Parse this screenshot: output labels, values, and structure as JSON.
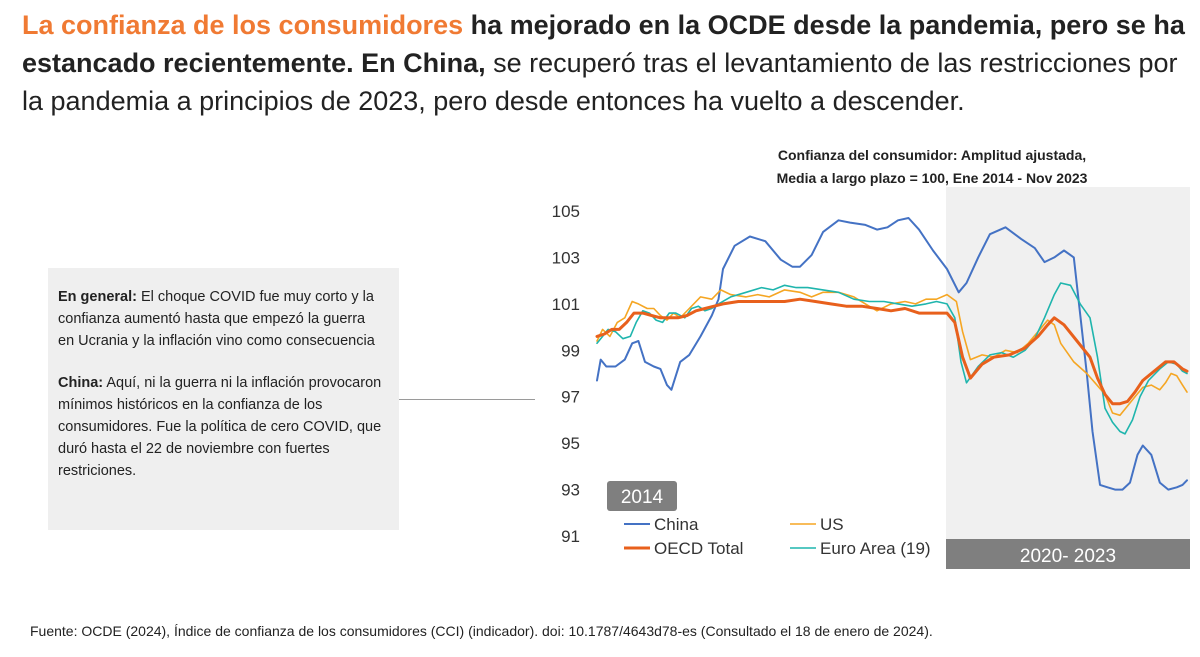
{
  "headline": {
    "part1_highlight": "La confianza de los consumidores",
    "part2_bold": " ha mejorado en la OCDE desde la pandemia, pero se ha estancado recientemente. En China,",
    "part3_regular": " se recuperó tras el levantamiento de las restricciones por la pandemia a principios de 2023, pero desde entonces ha vuelto a descender."
  },
  "note": {
    "p1_label": "En general:",
    "p1_text": " El choque COVID fue muy corto y la confianza aumentó hasta que empezó la guerra en Ucrania y la inflación vino como consecuencia",
    "p2_label": "China:",
    "p2_text": " Aquí, ni la guerra ni la inflación provocaron mínimos históricos en la confianza de los consumidores. Fue la política de cero COVID, que duró hasta el 22 de noviembre con fuertes restriciones."
  },
  "source": "Fuente: OCDE (2024), Índice de confianza de los consumidores (CCI) (indicador). doi: 10.1787/4643d78-es (Consultado el 18 de enero de 2024).",
  "colors": {
    "china": "#4472c4",
    "us": "#f5a623",
    "oecd": "#e8601c",
    "euro": "#1fb5ad",
    "shade": "#f0f0f0",
    "label_box": "#7f7f7f"
  },
  "chart_data": {
    "type": "line",
    "title_line1": "Confianza del consumidor: Amplitud ajustada,",
    "title_line2": "Media  a largo plazo = 100, Ene 2014 - Nov 2023",
    "ylim": [
      91,
      105
    ],
    "yticks": [
      91,
      93,
      95,
      97,
      99,
      101,
      103,
      105
    ],
    "x_start": "2014-01",
    "x_end": "2023-11",
    "shaded_period": {
      "start": "2020-01",
      "end": "2023-11",
      "label": "2020- 2023"
    },
    "start_label": "2014",
    "x_anchor_years": [
      2014,
      2015,
      2016,
      2017,
      2018,
      2019,
      2020,
      2021,
      2022,
      2023,
      2023.83
    ],
    "series": [
      {
        "name": "China",
        "color_key": "china",
        "width": 2,
        "points": [
          [
            2014.0,
            97.7
          ],
          [
            2014.1,
            98.6
          ],
          [
            2014.25,
            98.3
          ],
          [
            2014.5,
            98.3
          ],
          [
            2014.75,
            98.6
          ],
          [
            2014.95,
            99.3
          ],
          [
            2015.1,
            99.4
          ],
          [
            2015.25,
            98.5
          ],
          [
            2015.45,
            98.3
          ],
          [
            2015.6,
            98.2
          ],
          [
            2015.75,
            97.5
          ],
          [
            2015.85,
            97.3
          ],
          [
            2016.05,
            98.5
          ],
          [
            2016.25,
            98.8
          ],
          [
            2016.5,
            99.6
          ],
          [
            2016.75,
            100.5
          ],
          [
            2016.9,
            101.2
          ],
          [
            2017.0,
            102.5
          ],
          [
            2017.15,
            103.5
          ],
          [
            2017.35,
            103.9
          ],
          [
            2017.55,
            103.7
          ],
          [
            2017.75,
            102.9
          ],
          [
            2017.9,
            102.6
          ],
          [
            2018.0,
            102.6
          ],
          [
            2018.15,
            103.1
          ],
          [
            2018.3,
            104.1
          ],
          [
            2018.5,
            104.6
          ],
          [
            2018.65,
            104.5
          ],
          [
            2018.85,
            104.4
          ],
          [
            2019.0,
            104.2
          ],
          [
            2019.15,
            104.3
          ],
          [
            2019.3,
            104.6
          ],
          [
            2019.45,
            104.7
          ],
          [
            2019.6,
            104.2
          ],
          [
            2019.8,
            103.3
          ],
          [
            2020.0,
            102.5
          ],
          [
            2020.15,
            101.5
          ],
          [
            2020.25,
            101.9
          ],
          [
            2020.4,
            103.0
          ],
          [
            2020.55,
            104.0
          ],
          [
            2020.75,
            104.3
          ],
          [
            2020.95,
            103.8
          ],
          [
            2021.15,
            103.4
          ],
          [
            2021.3,
            102.8
          ],
          [
            2021.45,
            103.0
          ],
          [
            2021.6,
            103.3
          ],
          [
            2021.75,
            103.0
          ],
          [
            2021.95,
            98.0
          ],
          [
            2022.05,
            95.5
          ],
          [
            2022.2,
            93.2
          ],
          [
            2022.35,
            93.1
          ],
          [
            2022.5,
            93.0
          ],
          [
            2022.65,
            93.0
          ],
          [
            2022.8,
            93.3
          ],
          [
            2022.95,
            94.5
          ],
          [
            2023.05,
            94.9
          ],
          [
            2023.2,
            94.5
          ],
          [
            2023.35,
            93.3
          ],
          [
            2023.5,
            93.0
          ],
          [
            2023.65,
            93.1
          ],
          [
            2023.75,
            93.2
          ],
          [
            2023.83,
            93.4
          ]
        ]
      },
      {
        "name": "US",
        "color_key": "us",
        "width": 1.6,
        "points": [
          [
            2014.0,
            99.4
          ],
          [
            2014.15,
            99.9
          ],
          [
            2014.35,
            99.6
          ],
          [
            2014.55,
            100.2
          ],
          [
            2014.75,
            100.4
          ],
          [
            2014.95,
            101.1
          ],
          [
            2015.1,
            101.0
          ],
          [
            2015.3,
            100.8
          ],
          [
            2015.45,
            100.8
          ],
          [
            2015.6,
            100.5
          ],
          [
            2015.75,
            100.3
          ],
          [
            2015.9,
            100.6
          ],
          [
            2016.05,
            100.4
          ],
          [
            2016.25,
            100.8
          ],
          [
            2016.5,
            101.3
          ],
          [
            2016.75,
            101.2
          ],
          [
            2016.95,
            101.6
          ],
          [
            2017.1,
            101.4
          ],
          [
            2017.3,
            101.3
          ],
          [
            2017.45,
            101.4
          ],
          [
            2017.6,
            101.3
          ],
          [
            2017.8,
            101.6
          ],
          [
            2018.0,
            101.5
          ],
          [
            2018.15,
            101.3
          ],
          [
            2018.3,
            101.5
          ],
          [
            2018.5,
            101.5
          ],
          [
            2018.7,
            101.3
          ],
          [
            2018.85,
            101.0
          ],
          [
            2019.0,
            100.7
          ],
          [
            2019.2,
            101.0
          ],
          [
            2019.4,
            101.1
          ],
          [
            2019.55,
            101.0
          ],
          [
            2019.7,
            101.2
          ],
          [
            2019.85,
            101.2
          ],
          [
            2020.0,
            101.4
          ],
          [
            2020.12,
            101.1
          ],
          [
            2020.2,
            99.8
          ],
          [
            2020.3,
            98.6
          ],
          [
            2020.45,
            98.8
          ],
          [
            2020.6,
            98.7
          ],
          [
            2020.75,
            99.0
          ],
          [
            2020.9,
            98.9
          ],
          [
            2021.05,
            99.3
          ],
          [
            2021.2,
            99.8
          ],
          [
            2021.35,
            100.3
          ],
          [
            2021.45,
            100.1
          ],
          [
            2021.55,
            99.3
          ],
          [
            2021.75,
            98.5
          ],
          [
            2021.95,
            98.0
          ],
          [
            2022.1,
            97.6
          ],
          [
            2022.3,
            97.1
          ],
          [
            2022.45,
            96.3
          ],
          [
            2022.6,
            96.2
          ],
          [
            2022.75,
            96.6
          ],
          [
            2022.9,
            97.0
          ],
          [
            2023.05,
            97.4
          ],
          [
            2023.2,
            97.5
          ],
          [
            2023.35,
            97.3
          ],
          [
            2023.45,
            97.6
          ],
          [
            2023.55,
            98.0
          ],
          [
            2023.65,
            97.9
          ],
          [
            2023.75,
            97.5
          ],
          [
            2023.83,
            97.2
          ]
        ]
      },
      {
        "name": "Euro Area (19)",
        "color_key": "euro",
        "width": 1.6,
        "points": [
          [
            2014.0,
            99.3
          ],
          [
            2014.15,
            99.6
          ],
          [
            2014.3,
            99.9
          ],
          [
            2014.5,
            99.8
          ],
          [
            2014.7,
            99.5
          ],
          [
            2014.9,
            99.6
          ],
          [
            2015.05,
            100.2
          ],
          [
            2015.2,
            100.7
          ],
          [
            2015.35,
            100.6
          ],
          [
            2015.5,
            100.3
          ],
          [
            2015.65,
            100.2
          ],
          [
            2015.8,
            100.6
          ],
          [
            2015.95,
            100.6
          ],
          [
            2016.15,
            100.4
          ],
          [
            2016.3,
            100.8
          ],
          [
            2016.45,
            100.9
          ],
          [
            2016.6,
            100.7
          ],
          [
            2016.75,
            100.8
          ],
          [
            2016.9,
            101.0
          ],
          [
            2017.1,
            101.3
          ],
          [
            2017.3,
            101.5
          ],
          [
            2017.5,
            101.7
          ],
          [
            2017.65,
            101.6
          ],
          [
            2017.8,
            101.8
          ],
          [
            2017.95,
            101.7
          ],
          [
            2018.1,
            101.7
          ],
          [
            2018.3,
            101.6
          ],
          [
            2018.5,
            101.5
          ],
          [
            2018.7,
            101.2
          ],
          [
            2018.9,
            101.1
          ],
          [
            2019.1,
            101.1
          ],
          [
            2019.3,
            101.0
          ],
          [
            2019.5,
            100.9
          ],
          [
            2019.7,
            101.0
          ],
          [
            2019.85,
            101.1
          ],
          [
            2020.0,
            101.0
          ],
          [
            2020.1,
            100.4
          ],
          [
            2020.18,
            98.5
          ],
          [
            2020.25,
            97.6
          ],
          [
            2020.4,
            98.3
          ],
          [
            2020.55,
            98.8
          ],
          [
            2020.7,
            98.9
          ],
          [
            2020.85,
            98.7
          ],
          [
            2021.0,
            99.0
          ],
          [
            2021.15,
            99.5
          ],
          [
            2021.3,
            100.4
          ],
          [
            2021.45,
            101.4
          ],
          [
            2021.55,
            101.9
          ],
          [
            2021.7,
            101.8
          ],
          [
            2021.85,
            101.0
          ],
          [
            2022.0,
            100.4
          ],
          [
            2022.15,
            98.7
          ],
          [
            2022.3,
            96.5
          ],
          [
            2022.45,
            95.9
          ],
          [
            2022.6,
            95.5
          ],
          [
            2022.7,
            95.4
          ],
          [
            2022.85,
            96.0
          ],
          [
            2023.0,
            97.0
          ],
          [
            2023.15,
            97.7
          ],
          [
            2023.35,
            98.2
          ],
          [
            2023.5,
            98.5
          ],
          [
            2023.65,
            98.4
          ],
          [
            2023.75,
            98.1
          ],
          [
            2023.83,
            98.0
          ]
        ]
      },
      {
        "name": "OECD Total",
        "color_key": "oecd",
        "width": 3,
        "points": [
          [
            2014.0,
            99.6
          ],
          [
            2014.2,
            99.7
          ],
          [
            2014.4,
            99.9
          ],
          [
            2014.6,
            99.9
          ],
          [
            2014.8,
            100.2
          ],
          [
            2015.0,
            100.6
          ],
          [
            2015.2,
            100.6
          ],
          [
            2015.4,
            100.5
          ],
          [
            2015.6,
            100.4
          ],
          [
            2015.8,
            100.4
          ],
          [
            2016.0,
            100.4
          ],
          [
            2016.2,
            100.5
          ],
          [
            2016.4,
            100.7
          ],
          [
            2016.6,
            100.8
          ],
          [
            2016.8,
            100.9
          ],
          [
            2017.0,
            101.0
          ],
          [
            2017.2,
            101.1
          ],
          [
            2017.4,
            101.1
          ],
          [
            2017.6,
            101.1
          ],
          [
            2017.8,
            101.1
          ],
          [
            2018.0,
            101.2
          ],
          [
            2018.2,
            101.1
          ],
          [
            2018.4,
            101.0
          ],
          [
            2018.6,
            100.9
          ],
          [
            2018.8,
            100.9
          ],
          [
            2019.0,
            100.8
          ],
          [
            2019.2,
            100.7
          ],
          [
            2019.4,
            100.8
          ],
          [
            2019.6,
            100.6
          ],
          [
            2019.8,
            100.6
          ],
          [
            2020.0,
            100.6
          ],
          [
            2020.1,
            100.2
          ],
          [
            2020.2,
            98.7
          ],
          [
            2020.3,
            97.8
          ],
          [
            2020.45,
            98.4
          ],
          [
            2020.6,
            98.7
          ],
          [
            2020.8,
            98.8
          ],
          [
            2021.0,
            99.1
          ],
          [
            2021.2,
            99.6
          ],
          [
            2021.35,
            100.1
          ],
          [
            2021.45,
            100.4
          ],
          [
            2021.6,
            100.1
          ],
          [
            2021.8,
            99.4
          ],
          [
            2022.0,
            98.7
          ],
          [
            2022.15,
            97.8
          ],
          [
            2022.3,
            97.1
          ],
          [
            2022.45,
            96.7
          ],
          [
            2022.6,
            96.7
          ],
          [
            2022.75,
            96.8
          ],
          [
            2022.9,
            97.2
          ],
          [
            2023.05,
            97.7
          ],
          [
            2023.25,
            98.1
          ],
          [
            2023.45,
            98.5
          ],
          [
            2023.6,
            98.5
          ],
          [
            2023.75,
            98.2
          ],
          [
            2023.83,
            98.1
          ]
        ]
      }
    ],
    "legend": [
      {
        "name": "China",
        "color_key": "china"
      },
      {
        "name": "US",
        "color_key": "us"
      },
      {
        "name": "OECD Total",
        "color_key": "oecd"
      },
      {
        "name": "Euro Area (19)",
        "color_key": "euro"
      }
    ]
  }
}
